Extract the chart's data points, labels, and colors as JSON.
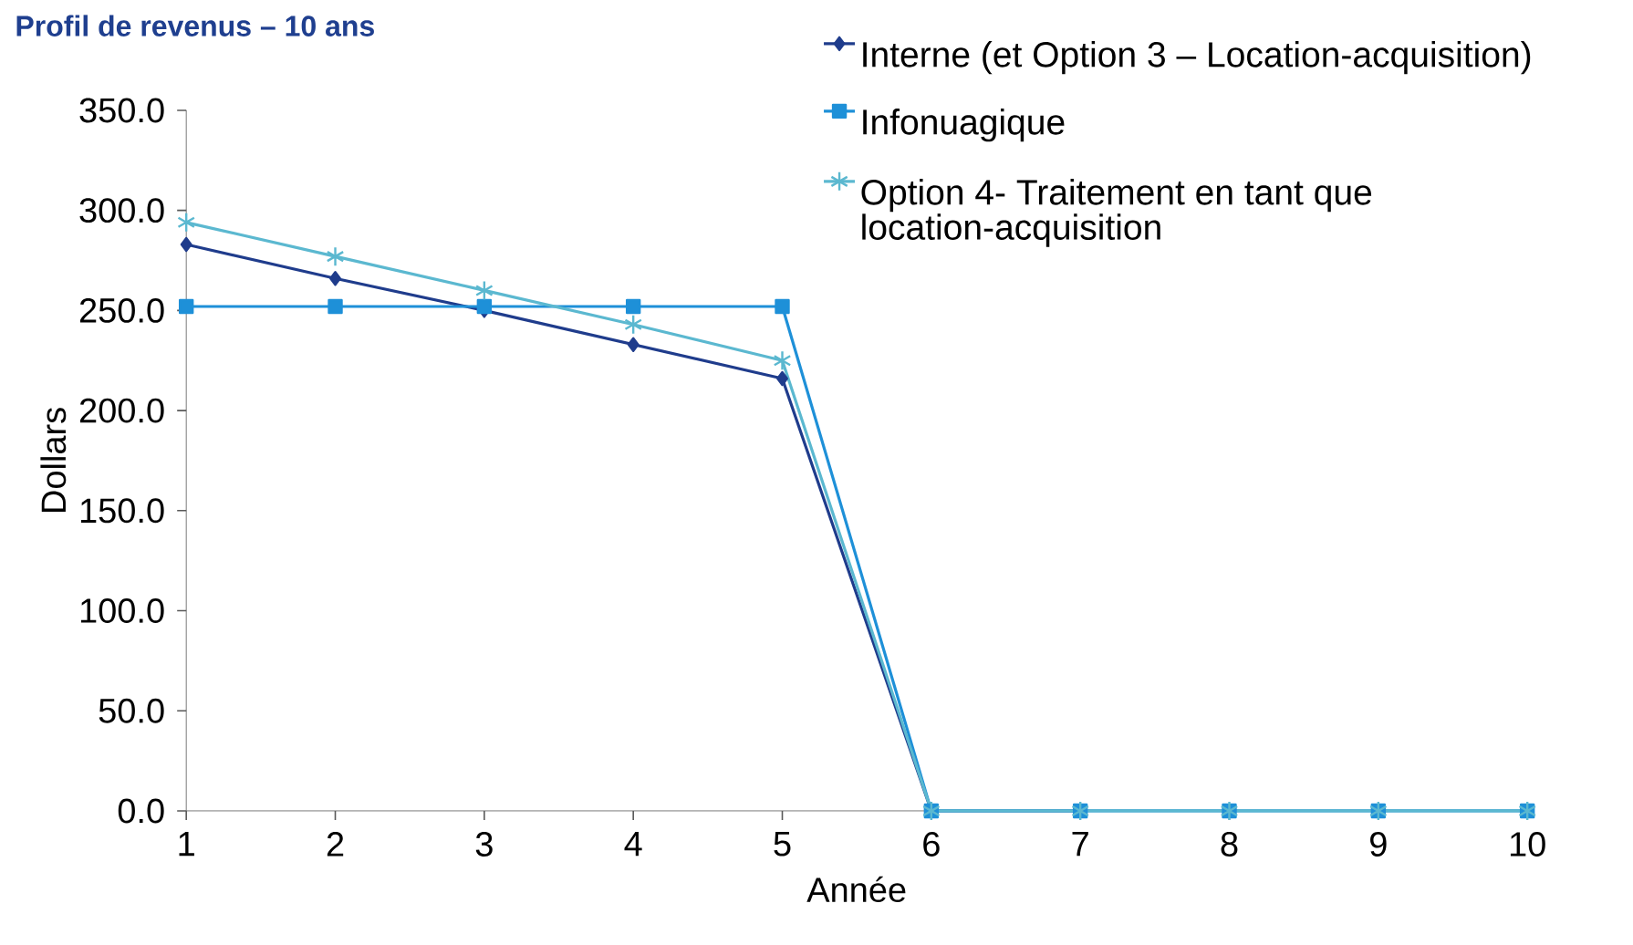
{
  "chart_data": {
    "type": "line",
    "title": "Profil de revenus – 10 ans",
    "xlabel": "Année",
    "ylabel": "Dollars",
    "x": [
      1,
      2,
      3,
      4,
      5,
      6,
      7,
      8,
      9,
      10
    ],
    "series": [
      {
        "name": "Interne (et Option 3 – Location-acquisition)",
        "color": "#1f3c8c",
        "marker": "diamond",
        "values": [
          283,
          266,
          250,
          233,
          216,
          0,
          0,
          null,
          null,
          null
        ]
      },
      {
        "name": "Infonuagique",
        "color": "#1e90d8",
        "marker": "square",
        "values": [
          252,
          252,
          252,
          252,
          252,
          0,
          0,
          0,
          0,
          0
        ]
      },
      {
        "name": "Option 4- Traitement en tant que location-acquisition",
        "color": "#5bb8d0",
        "marker": "cross",
        "values": [
          294,
          277,
          260,
          243,
          225,
          0,
          0,
          0,
          0,
          0
        ]
      }
    ],
    "xlim": [
      1,
      10
    ],
    "xticks": [
      1,
      2,
      3,
      4,
      5,
      6,
      7,
      8,
      9,
      10
    ],
    "ylim": [
      0,
      350
    ],
    "yticks": [
      {
        "value": 0,
        "label": "0.0"
      },
      {
        "value": 50,
        "label": "50.0"
      },
      {
        "value": 100,
        "label": "100.0"
      },
      {
        "value": 150,
        "label": "150.0"
      },
      {
        "value": 200,
        "label": "200.0"
      },
      {
        "value": 250,
        "label": "250.0"
      },
      {
        "value": 300,
        "label": "300.0"
      },
      {
        "value": 350,
        "label": "350.0"
      }
    ],
    "grid": false,
    "legend": "top right",
    "line_style": "solid"
  }
}
